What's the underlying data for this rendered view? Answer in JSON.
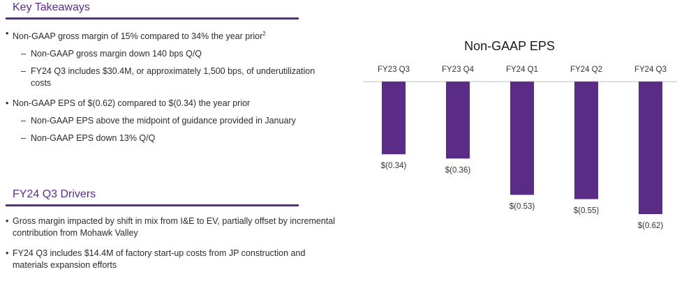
{
  "sections": [
    {
      "title": "Key Takeaways",
      "bullets": [
        {
          "text": "Non-GAAP gross margin of 15% compared to 34% the year prior",
          "footnote": "2",
          "sub": [
            "Non-GAAP gross margin down 140 bps Q/Q",
            "FY24 Q3 includes $30.4M, or approximately 1,500 bps, of underutilization costs"
          ]
        },
        {
          "text": "Non-GAAP EPS of $(0.62) compared to $(0.34) the year prior",
          "sub": [
            "Non-GAAP EPS above the midpoint of guidance provided in January",
            "Non-GAAP EPS down 13% Q/Q"
          ]
        }
      ]
    },
    {
      "title": "FY24 Q3 Drivers",
      "bullets": [
        {
          "text": "Gross margin impacted by shift in mix from I&E to EV, partially offset by incremental contribution from Mohawk Valley"
        },
        {
          "text": "FY24 Q3 includes $14.4M of factory start-up costs from JP construction and materials expansion efforts"
        }
      ]
    }
  ],
  "colors": {
    "accent": "#5b2c86",
    "bar": "#5b2c86",
    "axis": "#bfbfbf"
  },
  "chart_data": {
    "type": "bar",
    "title": "Non-GAAP EPS",
    "categories": [
      "FY23 Q3",
      "FY23 Q4",
      "FY24 Q1",
      "FY24 Q2",
      "FY24 Q3"
    ],
    "values": [
      -0.34,
      -0.36,
      -0.53,
      -0.55,
      -0.62
    ],
    "data_labels": [
      "$(0.34)",
      "$(0.36)",
      "$(0.53)",
      "$(0.55)",
      "$(0.62)"
    ],
    "ylim": [
      -0.62,
      0
    ],
    "grid": false,
    "legend": "none"
  }
}
